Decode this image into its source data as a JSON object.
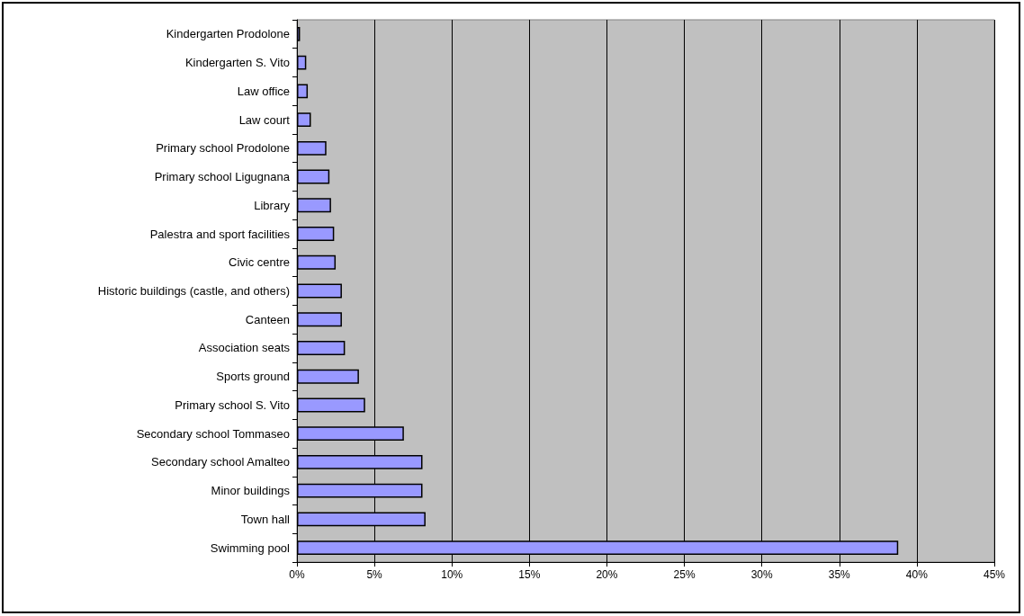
{
  "chart_data": {
    "type": "bar",
    "orientation": "horizontal",
    "categories": [
      "Kindergarten Prodolone",
      "Kindergarten S. Vito",
      "Law office",
      "Law court",
      "Primary school Prodolone",
      "Primary school Ligugnana",
      "Library",
      "Palestra and sport facilities",
      "Civic centre",
      "Historic buildings (castle, and others)",
      "Canteen",
      "Association seats",
      "Sports ground",
      "Primary school S. Vito",
      "Secondary school Tommaseo",
      "Secondary school Amalteo",
      "Minor buildings",
      "Town hall",
      "Swimming pool"
    ],
    "values": [
      0.2,
      0.6,
      0.7,
      0.9,
      1.9,
      2.1,
      2.2,
      2.4,
      2.5,
      2.9,
      2.9,
      3.1,
      4.0,
      4.4,
      6.9,
      8.1,
      8.1,
      8.3,
      38.8
    ],
    "color": "#9999ff",
    "xlim": [
      0,
      45
    ],
    "xticks": [
      {
        "value": 0,
        "label": "0%"
      },
      {
        "value": 5,
        "label": "5%"
      },
      {
        "value": 10,
        "label": "10%"
      },
      {
        "value": 15,
        "label": "15%"
      },
      {
        "value": 20,
        "label": "20%"
      },
      {
        "value": 25,
        "label": "25%"
      },
      {
        "value": 30,
        "label": "30%"
      },
      {
        "value": 35,
        "label": "35%"
      },
      {
        "value": 40,
        "label": "40%"
      },
      {
        "value": 45,
        "label": "45%"
      }
    ],
    "grid": "x"
  }
}
